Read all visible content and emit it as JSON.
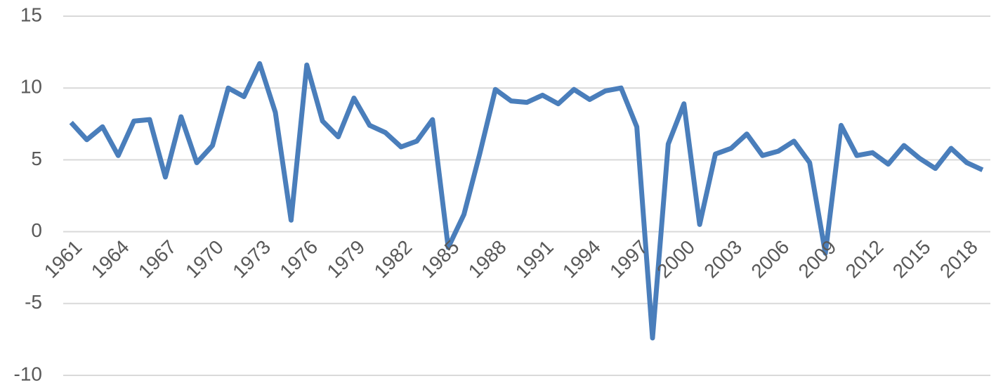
{
  "chart_data": {
    "type": "line",
    "x": [
      1961,
      1962,
      1963,
      1964,
      1965,
      1966,
      1967,
      1968,
      1969,
      1970,
      1971,
      1972,
      1973,
      1974,
      1975,
      1976,
      1977,
      1978,
      1979,
      1980,
      1981,
      1982,
      1983,
      1984,
      1985,
      1986,
      1987,
      1988,
      1989,
      1990,
      1991,
      1992,
      1993,
      1994,
      1995,
      1996,
      1997,
      1998,
      1999,
      2000,
      2001,
      2002,
      2003,
      2004,
      2005,
      2006,
      2007,
      2008,
      2009,
      2010,
      2011,
      2012,
      2013,
      2014,
      2015,
      2016,
      2017,
      2018,
      2019
    ],
    "series": [
      {
        "color": "#4a7ebb",
        "values": [
          7.6,
          6.4,
          7.3,
          5.3,
          7.7,
          7.8,
          3.8,
          8.0,
          4.8,
          6.0,
          10.0,
          9.4,
          11.7,
          8.3,
          0.8,
          11.6,
          7.7,
          6.6,
          9.3,
          7.4,
          6.9,
          5.9,
          6.3,
          7.8,
          -1.1,
          1.2,
          5.4,
          9.9,
          9.1,
          9.0,
          9.5,
          8.9,
          9.9,
          9.2,
          9.8,
          10.0,
          7.3,
          -7.4,
          6.1,
          8.9,
          0.5,
          5.4,
          5.8,
          6.8,
          5.3,
          5.6,
          6.3,
          4.8,
          -1.5,
          7.4,
          5.3,
          5.5,
          4.7,
          6.0,
          5.1,
          4.4,
          5.8,
          4.8,
          4.3
        ]
      }
    ],
    "xlim": [
      1960.5,
      2019.5
    ],
    "xticks": [
      1961,
      1964,
      1967,
      1970,
      1973,
      1976,
      1979,
      1982,
      1985,
      1988,
      1991,
      1994,
      1997,
      2000,
      2003,
      2006,
      2009,
      2012,
      2015,
      2018
    ],
    "ylim": [
      -10,
      15
    ],
    "yticks": [
      15,
      10,
      5,
      0,
      -5,
      -10
    ],
    "grid": true
  }
}
